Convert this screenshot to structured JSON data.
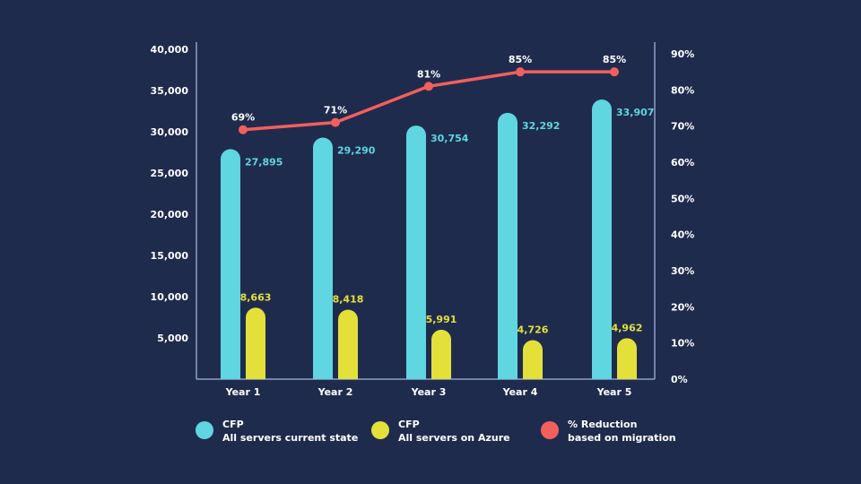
{
  "chart_data": {
    "type": "bar",
    "categories": [
      "Year 1",
      "Year 2",
      "Year 3",
      "Year 4",
      "Year 5"
    ],
    "series": [
      {
        "name": "CFP All servers current state",
        "type": "bar",
        "axis": "left",
        "values": [
          27895,
          29290,
          30754,
          32292,
          33907
        ],
        "labels": [
          "27,895",
          "29,290",
          "30,754",
          "32,292",
          "33,907"
        ]
      },
      {
        "name": "CFP All servers on Azure",
        "type": "bar",
        "axis": "left",
        "values": [
          8663,
          8418,
          5991,
          4726,
          4962
        ],
        "labels": [
          "8,663",
          "8,418",
          "5,991",
          "4,726",
          "4,962"
        ]
      },
      {
        "name": "% Reduction based on migration",
        "type": "line",
        "axis": "right",
        "values": [
          69,
          71,
          81,
          85,
          85
        ],
        "labels": [
          "69%",
          "71%",
          "81%",
          "85%",
          "85%"
        ]
      }
    ],
    "y_left": {
      "min": 0,
      "max": 40000,
      "ticks": [
        "5,000",
        "10,000",
        "15,000",
        "20,000",
        "25,000",
        "30,000",
        "35,000",
        "40,000"
      ],
      "tick_values": [
        5000,
        10000,
        15000,
        20000,
        25000,
        30000,
        35000,
        40000
      ]
    },
    "y_right": {
      "min": 0,
      "max": 90,
      "ticks": [
        "0%",
        "10%",
        "20%",
        "30%",
        "40%",
        "50%",
        "60%",
        "70%",
        "80%",
        "90%"
      ],
      "tick_values": [
        0,
        10,
        20,
        30,
        40,
        50,
        60,
        70,
        80,
        90
      ]
    },
    "grid": false,
    "legend_position": "bottom"
  },
  "legend": [
    {
      "line1": "CFP",
      "line2": "All servers current state",
      "color": "#5fd6e0"
    },
    {
      "line1": "CFP",
      "line2": "All servers on Azure",
      "color": "#e3e03a"
    },
    {
      "line1": "% Reduction",
      "line2": "based on migration",
      "color": "#f25f5c"
    }
  ],
  "colors": {
    "background": "#1f2b4d",
    "bar_current": "#5fd6e0",
    "bar_azure": "#e3e03a",
    "line": "#f25f5c",
    "axis": "#8fa0c9"
  }
}
